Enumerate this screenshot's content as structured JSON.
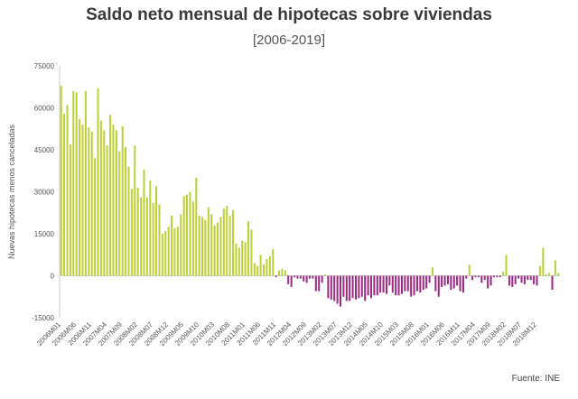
{
  "chart_data": {
    "type": "bar",
    "title": "Saldo neto mensual de hipotecas sobre viviendas",
    "subtitle": "[2006-2019]",
    "ylabel": "Nuevas hipotecas menos canceladas",
    "xlabel": "",
    "ylim": [
      -15000,
      75000
    ],
    "yticks": [
      -15000,
      0,
      15000,
      30000,
      45000,
      60000,
      75000
    ],
    "ytick_labels": [
      "-15000",
      "0",
      "15000",
      "30000",
      "45000",
      "60000",
      "75000"
    ],
    "xtick_labels": [
      "2006M01",
      "2006M06",
      "2006M11",
      "2007M04",
      "2007M09",
      "2008M02",
      "2008M07",
      "2008M12",
      "2009M05",
      "2009M10",
      "2010M03",
      "2010M08",
      "2011M01",
      "2011M06",
      "2011M11",
      "2012M04",
      "2012M09",
      "2013M02",
      "2013M07",
      "2013M12",
      "2014M05",
      "2014M10",
      "2015M03",
      "2015M08",
      "2016M01",
      "2016M06",
      "2016M11",
      "2017M04",
      "2017M09",
      "2018M02",
      "2018M07",
      "2018M12"
    ],
    "tick_every": 5,
    "positive_color": "#bcd139",
    "negative_color": "#9c2b83",
    "values": [
      68000,
      58000,
      61000,
      47000,
      66000,
      65500,
      56000,
      54000,
      66000,
      53000,
      51500,
      42000,
      67000,
      55500,
      52000,
      46500,
      57500,
      54000,
      52000,
      44500,
      53500,
      46000,
      39000,
      31000,
      46500,
      31500,
      28000,
      38000,
      28000,
      34000,
      26000,
      32000,
      25500,
      15000,
      16000,
      17500,
      21500,
      17000,
      17500,
      22000,
      28500,
      29000,
      30000,
      26500,
      35000,
      21500,
      21000,
      20000,
      24500,
      22000,
      18000,
      19000,
      21000,
      24000,
      25000,
      21500,
      23500,
      11500,
      10000,
      12500,
      12000,
      19500,
      16500,
      4500,
      3500,
      7500,
      4000,
      6000,
      7000,
      9500,
      -500,
      2000,
      2500,
      2000,
      -3000,
      -4000,
      -500,
      -1000,
      -1000,
      -2000,
      -2500,
      -1000,
      -1000,
      -5500,
      -5500,
      -2500,
      500,
      -8000,
      -8500,
      -9000,
      -10000,
      -11000,
      -7500,
      -9000,
      -9000,
      -8000,
      -8500,
      -8000,
      -7500,
      -9000,
      -7000,
      -8000,
      -7000,
      -7000,
      -6000,
      -6000,
      -6500,
      -3500,
      -6000,
      -7000,
      -7000,
      -6500,
      -5500,
      -5500,
      -7500,
      -7000,
      -5500,
      -6000,
      -5000,
      -4500,
      -2500,
      3000,
      -5500,
      -7500,
      -4000,
      -3500,
      -3000,
      -5000,
      -4500,
      -3500,
      -5500,
      -6000,
      -1000,
      4000,
      -1500,
      -500,
      -500,
      -2500,
      -1500,
      -4500,
      -3500,
      -500,
      -500,
      -500,
      1500,
      7500,
      -3500,
      -4000,
      -3000,
      -1000,
      -2500,
      -3000,
      -1500,
      -1500,
      -3000,
      -3500,
      3500,
      10000,
      500,
      1000,
      -5000,
      5500,
      1000
    ]
  },
  "source": "Fuente: INE"
}
